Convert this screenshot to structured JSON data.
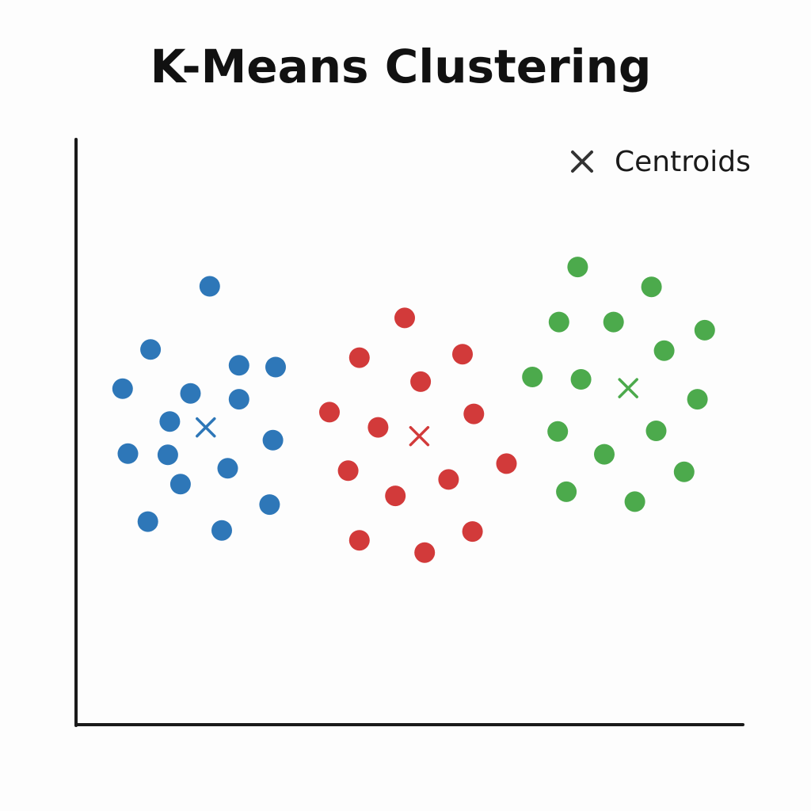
{
  "chart_data": {
    "type": "scatter",
    "title": "K-Means Clustering",
    "xlabel": "",
    "ylabel": "",
    "xlim": [
      0,
      100
    ],
    "ylim": [
      0,
      100
    ],
    "grid": false,
    "show_tick_labels": false,
    "legend": {
      "position": "top-right",
      "entries": [
        {
          "label": "Centroids",
          "marker": "x",
          "color": "#333333"
        }
      ]
    },
    "series": [
      {
        "role": "cluster",
        "color": "#2e77b8",
        "points": [
          [
            20.1,
            74.9
          ],
          [
            11.2,
            64.1
          ],
          [
            17.2,
            56.6
          ],
          [
            24.5,
            61.4
          ],
          [
            7.0,
            57.4
          ],
          [
            14.1,
            51.8
          ],
          [
            24.5,
            55.6
          ],
          [
            30.0,
            61.1
          ],
          [
            13.8,
            46.1
          ],
          [
            7.8,
            46.3
          ],
          [
            22.8,
            43.8
          ],
          [
            15.7,
            41.1
          ],
          [
            29.6,
            48.6
          ],
          [
            29.1,
            37.6
          ],
          [
            10.8,
            34.7
          ],
          [
            21.9,
            33.2
          ]
        ],
        "centroid": [
          19.5,
          50.8
        ]
      },
      {
        "role": "cluster",
        "color": "#d23a3a",
        "points": [
          [
            49.4,
            69.5
          ],
          [
            42.6,
            62.7
          ],
          [
            58.1,
            63.3
          ],
          [
            51.8,
            58.6
          ],
          [
            38.1,
            53.4
          ],
          [
            45.4,
            50.8
          ],
          [
            59.8,
            53.1
          ],
          [
            40.9,
            43.4
          ],
          [
            56.0,
            41.9
          ],
          [
            48.0,
            39.1
          ],
          [
            64.7,
            44.6
          ],
          [
            42.6,
            31.5
          ],
          [
            52.4,
            29.4
          ],
          [
            59.6,
            33.0
          ]
        ],
        "centroid": [
          51.6,
          49.3
        ]
      },
      {
        "role": "cluster",
        "color": "#4caa4c",
        "points": [
          [
            75.4,
            78.2
          ],
          [
            86.5,
            74.8
          ],
          [
            72.6,
            68.8
          ],
          [
            80.8,
            68.8
          ],
          [
            94.5,
            67.4
          ],
          [
            88.4,
            63.9
          ],
          [
            68.6,
            59.4
          ],
          [
            75.9,
            59.0
          ],
          [
            93.4,
            55.6
          ],
          [
            72.4,
            50.1
          ],
          [
            87.2,
            50.2
          ],
          [
            79.4,
            46.2
          ],
          [
            91.4,
            43.2
          ],
          [
            73.7,
            39.8
          ],
          [
            84.0,
            38.1
          ]
        ],
        "centroid": [
          83.0,
          57.5
        ]
      }
    ]
  }
}
